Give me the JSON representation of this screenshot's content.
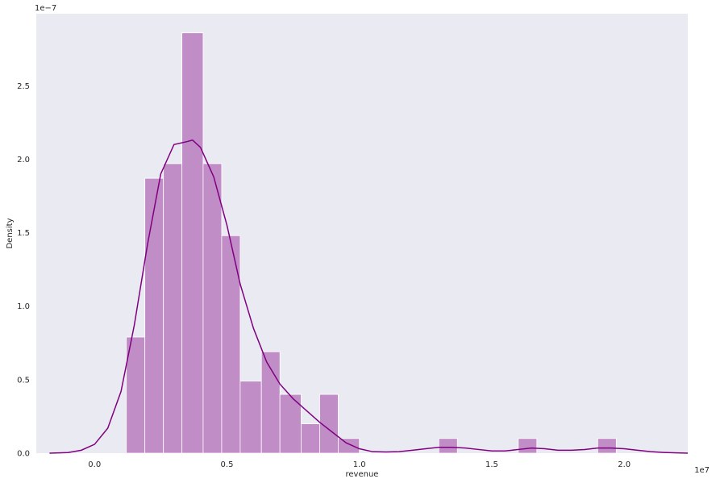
{
  "chart_data": {
    "type": "bar",
    "subtype": "histogram-with-kde",
    "title": "",
    "xlabel": "revenue",
    "ylabel": "Density",
    "x_offset_text": "1e7",
    "y_offset_text": "1e−7",
    "xlim": [
      -0.22,
      2.24
    ],
    "ylim": [
      0,
      2.99
    ],
    "x_ticks": [
      0.0,
      0.5,
      1.0,
      1.5,
      2.0
    ],
    "x_tick_labels": [
      "0.0",
      "0.5",
      "1.0",
      "1.5",
      "2.0"
    ],
    "y_ticks": [
      0.0,
      0.5,
      1.0,
      1.5,
      2.0,
      2.5
    ],
    "y_tick_labels": [
      "0.0",
      "0.5",
      "1.0",
      "1.5",
      "2.0",
      "2.5"
    ],
    "grid": false,
    "background_color": "#eaeaf2",
    "bar_color": "#c08dc7",
    "bar_edge_color": "#ffffff",
    "line_color": "#800080",
    "bins": [
      {
        "x0": 0.12,
        "x1": 0.19,
        "density": 0.79
      },
      {
        "x0": 0.19,
        "x1": 0.26,
        "density": 1.87
      },
      {
        "x0": 0.26,
        "x1": 0.33,
        "density": 1.97
      },
      {
        "x0": 0.33,
        "x1": 0.41,
        "density": 2.86
      },
      {
        "x0": 0.41,
        "x1": 0.48,
        "density": 1.97
      },
      {
        "x0": 0.48,
        "x1": 0.55,
        "density": 1.48
      },
      {
        "x0": 0.55,
        "x1": 0.63,
        "density": 0.49
      },
      {
        "x0": 0.63,
        "x1": 0.7,
        "density": 0.69
      },
      {
        "x0": 0.7,
        "x1": 0.78,
        "density": 0.4
      },
      {
        "x0": 0.78,
        "x1": 0.85,
        "density": 0.2
      },
      {
        "x0": 0.85,
        "x1": 0.92,
        "density": 0.4
      },
      {
        "x0": 0.92,
        "x1": 1.0,
        "density": 0.1
      },
      {
        "x0": 1.0,
        "x1": 1.3,
        "density": 0.0
      },
      {
        "x0": 1.3,
        "x1": 1.37,
        "density": 0.1
      },
      {
        "x0": 1.37,
        "x1": 1.6,
        "density": 0.0
      },
      {
        "x0": 1.6,
        "x1": 1.67,
        "density": 0.1
      },
      {
        "x0": 1.67,
        "x1": 1.9,
        "density": 0.0
      },
      {
        "x0": 1.9,
        "x1": 1.97,
        "density": 0.1
      }
    ],
    "kde": {
      "x": [
        -0.17,
        -0.1,
        -0.05,
        0.0,
        0.05,
        0.1,
        0.15,
        0.2,
        0.25,
        0.3,
        0.35,
        0.37,
        0.4,
        0.45,
        0.5,
        0.55,
        0.6,
        0.65,
        0.7,
        0.75,
        0.8,
        0.85,
        0.9,
        0.95,
        1.0,
        1.05,
        1.1,
        1.15,
        1.2,
        1.25,
        1.3,
        1.35,
        1.4,
        1.45,
        1.5,
        1.55,
        1.6,
        1.65,
        1.7,
        1.75,
        1.8,
        1.85,
        1.9,
        1.95,
        2.0,
        2.05,
        2.1,
        2.15,
        2.2,
        2.24
      ],
      "y": [
        0.0,
        0.004,
        0.02,
        0.06,
        0.17,
        0.42,
        0.87,
        1.42,
        1.9,
        2.1,
        2.12,
        2.13,
        2.08,
        1.88,
        1.55,
        1.15,
        0.85,
        0.62,
        0.47,
        0.37,
        0.29,
        0.21,
        0.14,
        0.07,
        0.03,
        0.01,
        0.008,
        0.01,
        0.02,
        0.03,
        0.04,
        0.04,
        0.035,
        0.025,
        0.015,
        0.015,
        0.025,
        0.035,
        0.03,
        0.02,
        0.02,
        0.025,
        0.035,
        0.035,
        0.03,
        0.02,
        0.01,
        0.005,
        0.002,
        0.0
      ]
    }
  }
}
